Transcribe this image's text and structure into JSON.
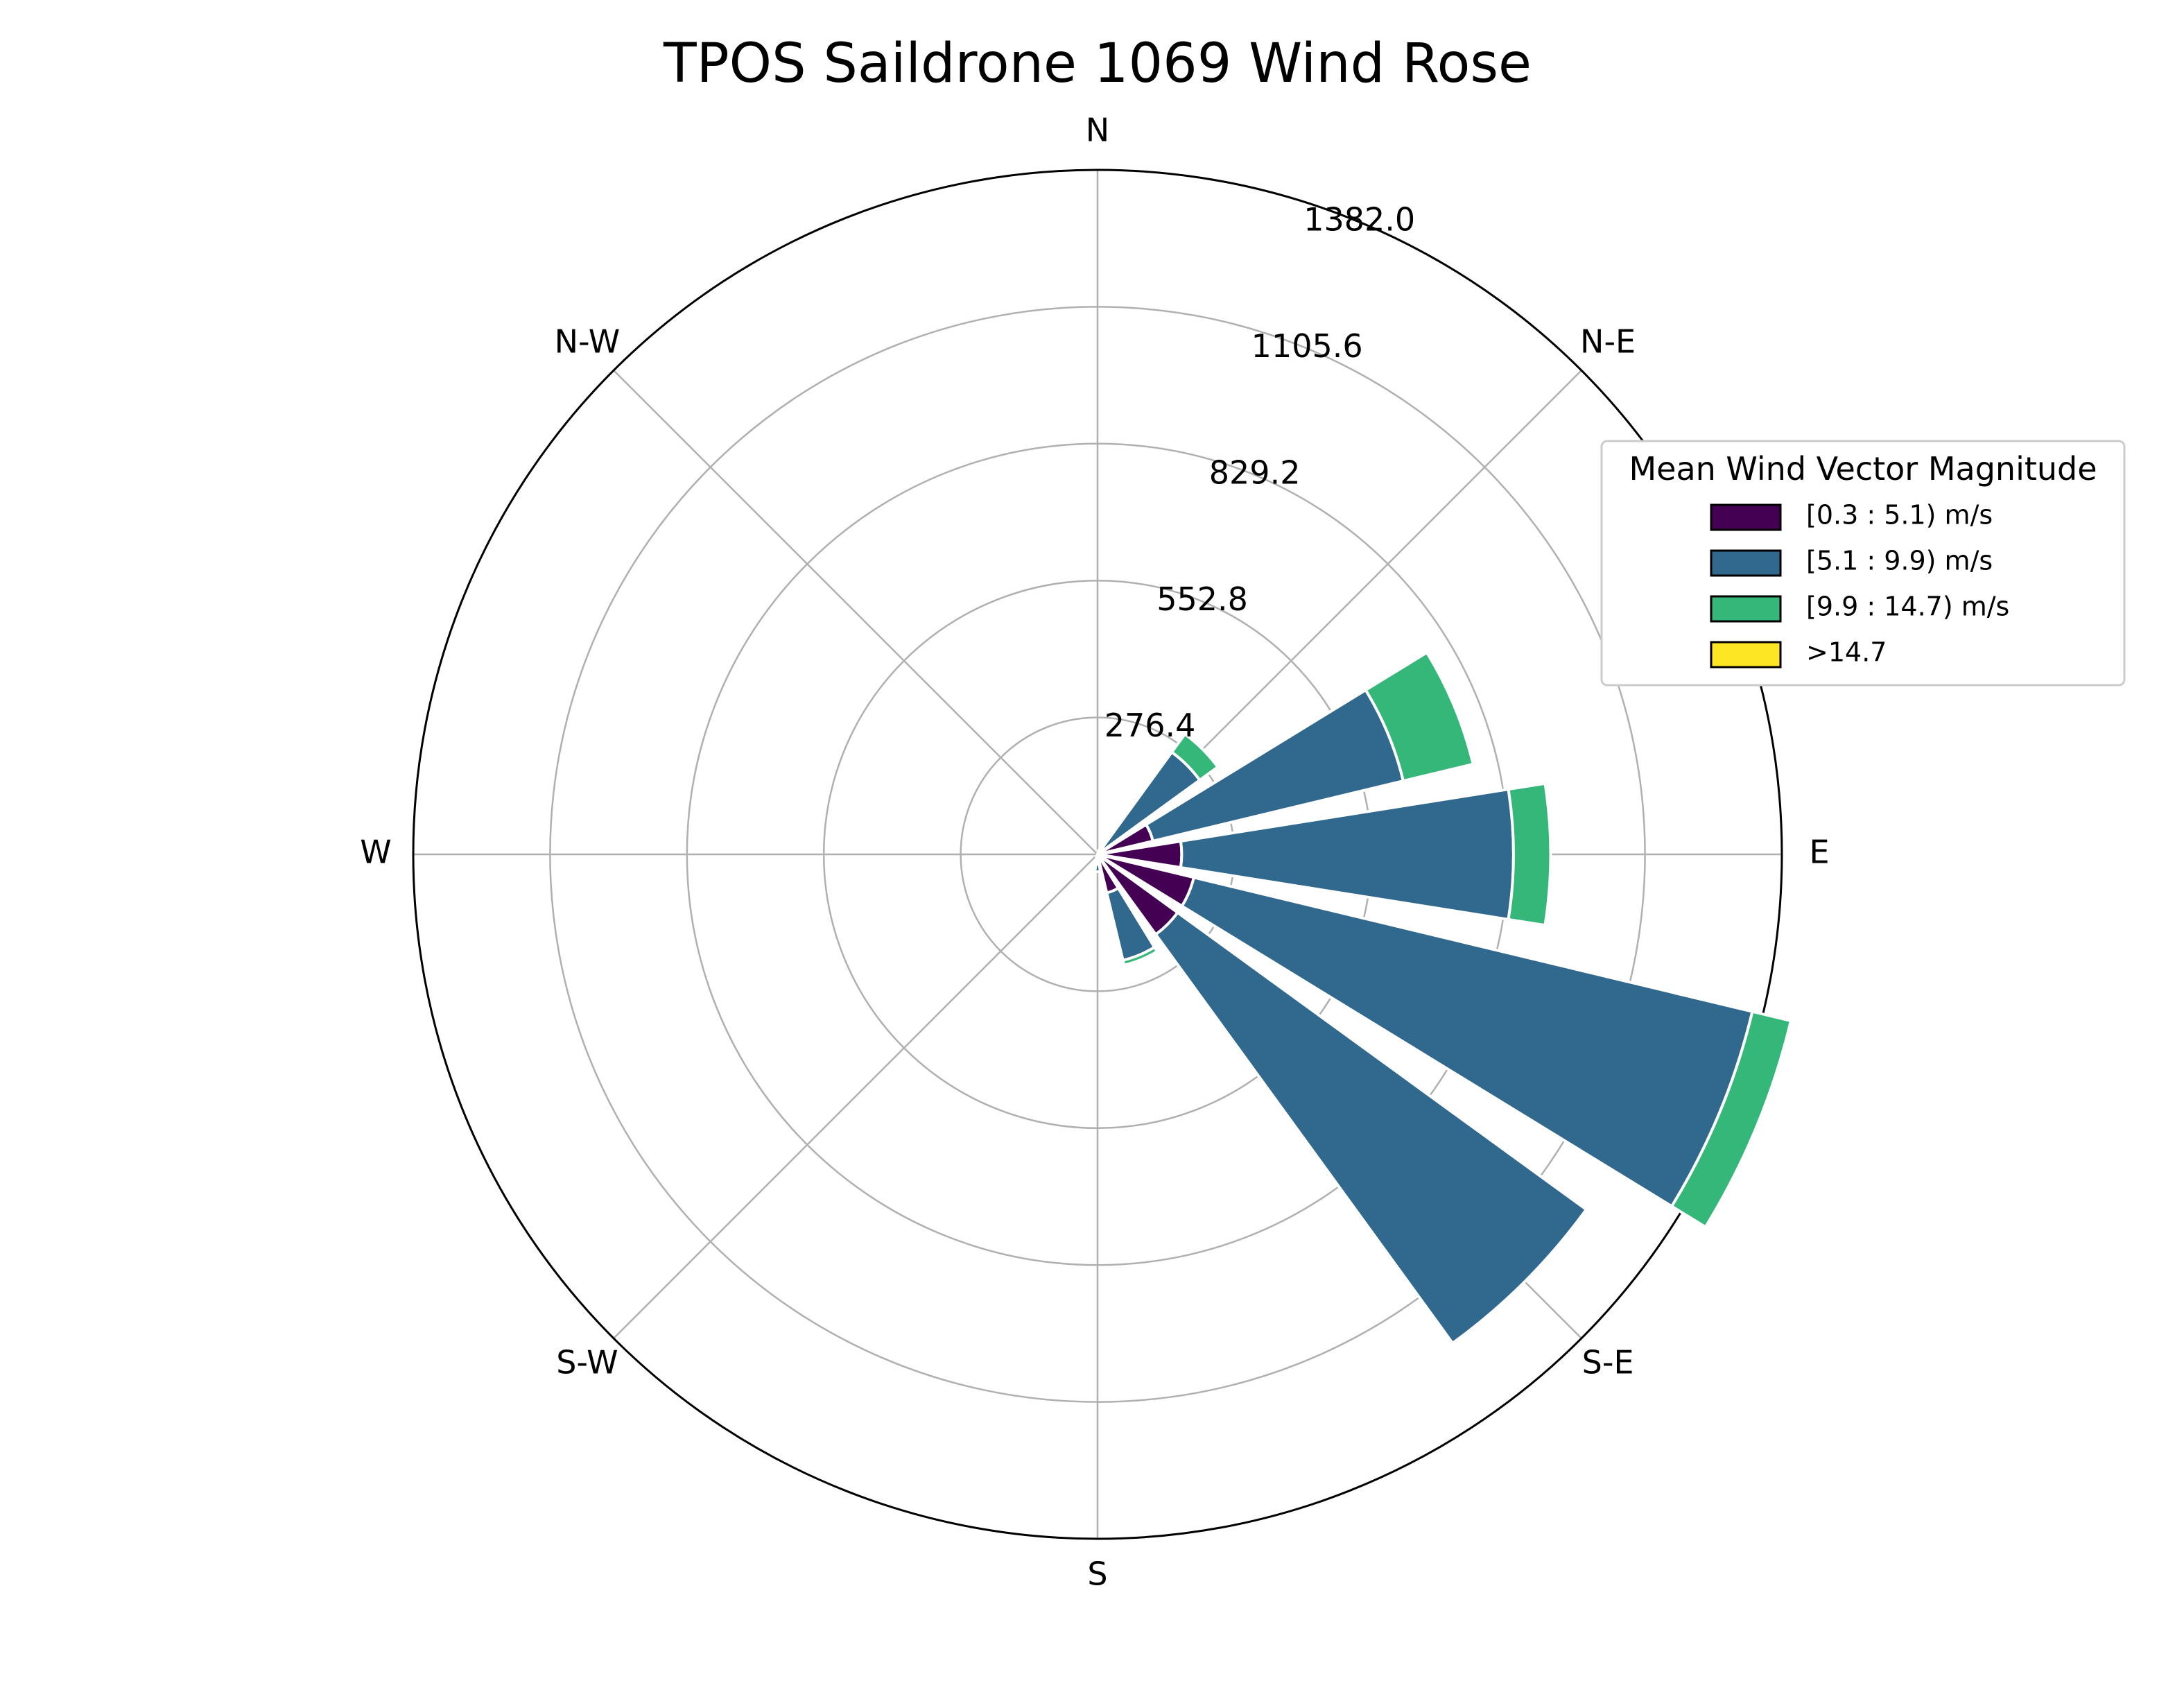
{
  "chart_data": {
    "type": "windrose",
    "title": "TPOS Saildrone 1069 Wind Rose",
    "directions": [
      "N",
      "N-E",
      "E",
      "S-E",
      "S",
      "S-W",
      "W",
      "N-W"
    ],
    "radial_ticks": [
      "276.4",
      "552.8",
      "829.2",
      "1105.6",
      "1382.0"
    ],
    "radial_max": 1382.0,
    "sector_directions_deg": [
      0,
      22.5,
      45,
      67.5,
      90,
      112.5,
      135,
      157.5,
      180,
      202.5,
      225,
      247.5,
      270,
      292.5,
      315,
      337.5
    ],
    "legend": {
      "title": "Mean Wind Vector Magnitude",
      "placement": "upper-right"
    },
    "series": [
      {
        "name": "[0.3 : 5.1) m/s",
        "color": "#440154",
        "values": [
          0,
          8,
          15,
          115,
          170,
          200,
          200,
          80,
          20,
          5,
          0,
          0,
          0,
          0,
          0,
          0
        ]
      },
      {
        "name": "[5.1 : 9.9) m/s",
        "color": "#30688e",
        "values": [
          0,
          0,
          240,
          520,
          670,
          1160,
          1020,
          140,
          15,
          0,
          0,
          0,
          0,
          0,
          0,
          0
        ]
      },
      {
        "name": "[9.9 : 14.7) m/s",
        "color": "#35b779",
        "values": [
          0,
          0,
          45,
          145,
          75,
          80,
          0,
          10,
          0,
          0,
          0,
          0,
          0,
          0,
          0,
          0
        ]
      },
      {
        "name": ">14.7",
        "color": "#fde725",
        "values": [
          0,
          0,
          0,
          0,
          0,
          0,
          0,
          0,
          0,
          0,
          0,
          0,
          0,
          0,
          0,
          0
        ]
      }
    ]
  }
}
